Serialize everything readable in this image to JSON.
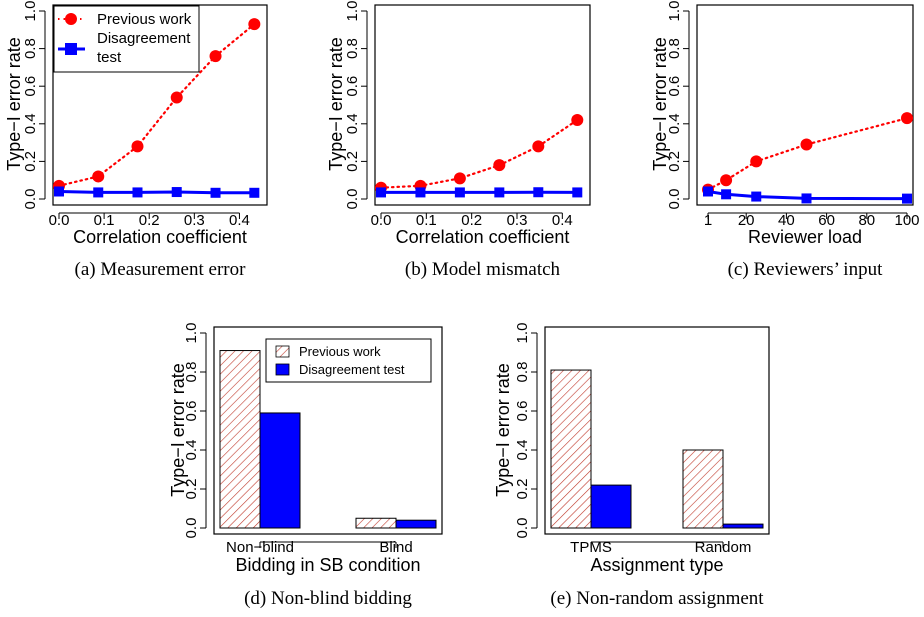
{
  "colors": {
    "previous": "#ff0000",
    "disagreement": "#0000ff",
    "hatch": "#c0392b",
    "axis": "#000000"
  },
  "chart_data": [
    {
      "id": "a",
      "type": "line",
      "caption": "(a) Measurement error",
      "xlabel": "Correlation  coefficient",
      "ylabel": "Type−I error rate",
      "xlim": [
        0,
        0.45
      ],
      "ylim": [
        0,
        1
      ],
      "xticks": [
        0,
        0.1,
        0.2,
        0.3,
        0.4
      ],
      "xtick_labels": [
        "0.0",
        "0.1",
        "0.2",
        "0.3",
        "0.4"
      ],
      "yticks": [
        0,
        0.2,
        0.4,
        0.6,
        0.8,
        1.0
      ],
      "ytick_labels": [
        "0.0",
        "0.2",
        "0.4",
        "0.6",
        "0.8",
        "1.0"
      ],
      "legend": {
        "position": "top-left",
        "entries": [
          "Previous work",
          "Disagreement test"
        ]
      },
      "series": [
        {
          "name": "Previous work",
          "style": "dotted-circle",
          "x": [
            0,
            0.087,
            0.174,
            0.261,
            0.347,
            0.433
          ],
          "y": [
            0.07,
            0.12,
            0.28,
            0.54,
            0.76,
            0.93
          ]
        },
        {
          "name": "Disagreement test",
          "style": "solid-square",
          "x": [
            0,
            0.087,
            0.174,
            0.261,
            0.347,
            0.433
          ],
          "y": [
            0.04,
            0.035,
            0.035,
            0.037,
            0.033,
            0.033
          ]
        }
      ]
    },
    {
      "id": "b",
      "type": "line",
      "caption": "(b) Model mismatch",
      "xlabel": "Correlation coefficient",
      "ylabel": "Type−I error rate",
      "xlim": [
        0,
        0.45
      ],
      "ylim": [
        0,
        1
      ],
      "xticks": [
        0,
        0.1,
        0.2,
        0.3,
        0.4
      ],
      "xtick_labels": [
        "0.0",
        "0.1",
        "0.2",
        "0.3",
        "0.4"
      ],
      "yticks": [
        0,
        0.2,
        0.4,
        0.6,
        0.8,
        1.0
      ],
      "ytick_labels": [
        "0.0",
        "0.2",
        "0.4",
        "0.6",
        "0.8",
        "1.0"
      ],
      "series": [
        {
          "name": "Previous work",
          "style": "dotted-circle",
          "x": [
            0,
            0.087,
            0.174,
            0.261,
            0.347,
            0.433
          ],
          "y": [
            0.06,
            0.07,
            0.11,
            0.18,
            0.28,
            0.42
          ]
        },
        {
          "name": "Disagreement test",
          "style": "solid-square",
          "x": [
            0,
            0.087,
            0.174,
            0.261,
            0.347,
            0.433
          ],
          "y": [
            0.035,
            0.035,
            0.035,
            0.035,
            0.036,
            0.035
          ]
        }
      ]
    },
    {
      "id": "c",
      "type": "line",
      "caption": "(c) Reviewers’ input",
      "xlabel": "Reviewer load",
      "ylabel": "Type−I error rate",
      "xlim": [
        0,
        100
      ],
      "ylim": [
        0,
        1
      ],
      "xticks": [
        1,
        20,
        40,
        60,
        80,
        100
      ],
      "xtick_labels": [
        "1",
        "20",
        "40",
        "60",
        "80",
        "100"
      ],
      "yticks": [
        0,
        0.2,
        0.4,
        0.6,
        0.8,
        1.0
      ],
      "ytick_labels": [
        "0.0",
        "0.2",
        "0.4",
        "0.6",
        "0.8",
        "1.0"
      ],
      "series": [
        {
          "name": "Previous work",
          "style": "dotted-circle",
          "x": [
            1,
            10,
            25,
            50,
            100
          ],
          "y": [
            0.05,
            0.1,
            0.2,
            0.29,
            0.43
          ]
        },
        {
          "name": "Disagreement test",
          "style": "solid-square",
          "x": [
            1,
            10,
            25,
            50,
            100
          ],
          "y": [
            0.04,
            0.025,
            0.013,
            0.003,
            0.002
          ]
        }
      ]
    },
    {
      "id": "d",
      "type": "bar",
      "caption": "(d) Non-blind bidding",
      "xlabel": "Bidding in SB condition",
      "ylabel": "Type−I error rate",
      "ylim": [
        0,
        1
      ],
      "yticks": [
        0,
        0.2,
        0.4,
        0.6,
        0.8,
        1.0
      ],
      "ytick_labels": [
        "0.0",
        "0.2",
        "0.4",
        "0.6",
        "0.8",
        "1.0"
      ],
      "categories": [
        "Non−blind",
        "Blind"
      ],
      "legend": {
        "position": "top-right",
        "entries": [
          "Previous work",
          "Disagreement test"
        ]
      },
      "series": [
        {
          "name": "Previous work",
          "style": "hatched",
          "values": [
            0.91,
            0.05
          ]
        },
        {
          "name": "Disagreement test",
          "style": "solid",
          "values": [
            0.59,
            0.04
          ]
        }
      ]
    },
    {
      "id": "e",
      "type": "bar",
      "caption": "(e) Non-random assignment",
      "xlabel": "Assignment type",
      "ylabel": "Type−I error rate",
      "ylim": [
        0,
        1
      ],
      "yticks": [
        0,
        0.2,
        0.4,
        0.6,
        0.8,
        1.0
      ],
      "ytick_labels": [
        "0.0",
        "0.2",
        "0.4",
        "0.6",
        "0.8",
        "1.0"
      ],
      "categories": [
        "TPMS",
        "Random"
      ],
      "series": [
        {
          "name": "Previous work",
          "style": "hatched",
          "values": [
            0.81,
            0.4
          ]
        },
        {
          "name": "Disagreement test",
          "style": "solid",
          "values": [
            0.22,
            0.02
          ]
        }
      ]
    }
  ]
}
